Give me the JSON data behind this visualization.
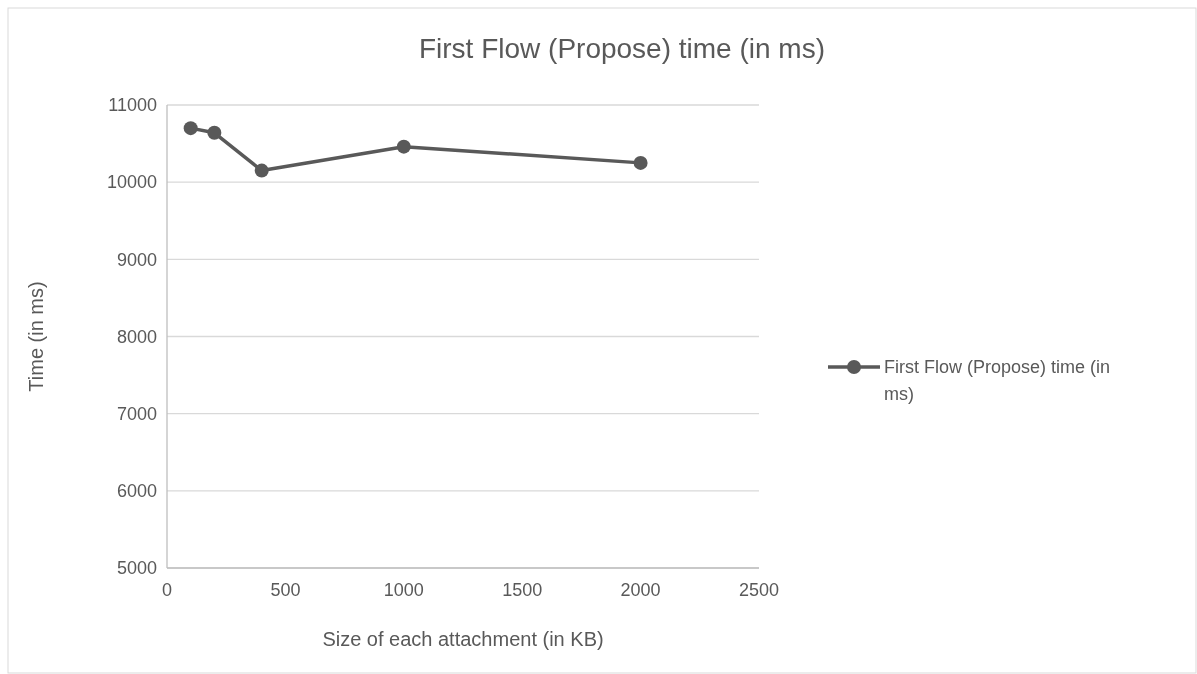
{
  "chart_data": {
    "type": "line",
    "title": "First Flow (Propose) time (in ms)",
    "xlabel": "Size of each attachment (in KB)",
    "ylabel": "Time (in ms)",
    "x": [
      100,
      200,
      400,
      1000,
      2000
    ],
    "series": [
      {
        "name": "First Flow (Propose) time (in ms)",
        "color": "#595959",
        "values": [
          10700,
          10640,
          10150,
          10460,
          10250
        ]
      }
    ],
    "xlim": [
      0,
      2500
    ],
    "xticks": [
      0,
      500,
      1000,
      1500,
      2000,
      2500
    ],
    "ylim": [
      5000,
      11000
    ],
    "yticks": [
      5000,
      6000,
      7000,
      8000,
      9000,
      10000,
      11000
    ],
    "grid": "y",
    "legend": "right",
    "marker": "circle",
    "line_style": "solid"
  }
}
